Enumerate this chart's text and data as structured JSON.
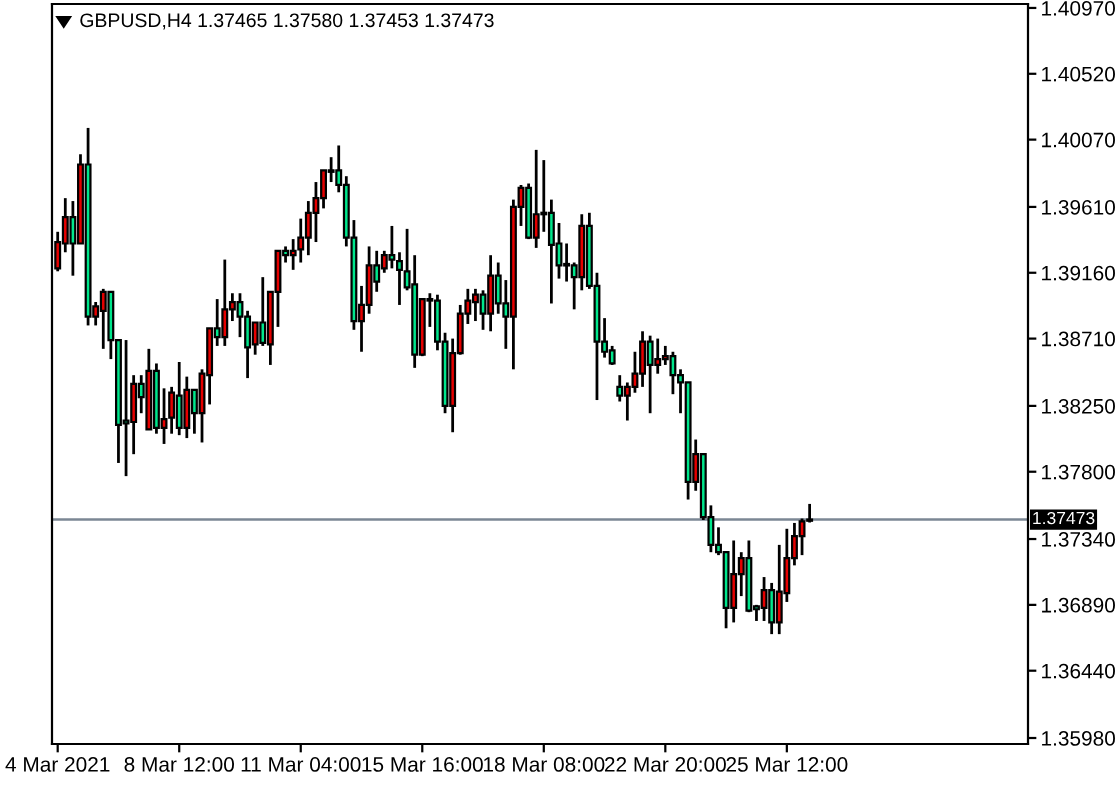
{
  "chart_data": {
    "type": "candlestick",
    "title": "GBPUSD,H4 1.37465 1.37580 1.37453 1.37473",
    "categories": [
      "4 Mar 2021",
      null,
      null,
      null,
      null,
      null,
      null,
      null,
      null,
      null,
      null,
      null,
      null,
      null,
      null,
      null,
      "8 Mar 12:00",
      null,
      null,
      null,
      null,
      null,
      null,
      null,
      null,
      null,
      null,
      null,
      null,
      null,
      null,
      null,
      "11 Mar 04:00",
      null,
      null,
      null,
      null,
      null,
      null,
      null,
      null,
      null,
      null,
      null,
      null,
      null,
      null,
      null,
      "15 Mar 16:00",
      null,
      null,
      null,
      null,
      null,
      null,
      null,
      null,
      null,
      null,
      null,
      null,
      null,
      null,
      null,
      "18 Mar 08:00",
      null,
      null,
      null,
      null,
      null,
      null,
      null,
      null,
      null,
      null,
      null,
      null,
      null,
      null,
      null,
      "22 Mar 20:00",
      null,
      null,
      null,
      null,
      null,
      null,
      null,
      null,
      null,
      null,
      null,
      null,
      null,
      null,
      null,
      "25 Mar 12:00",
      null,
      null,
      null,
      null,
      null,
      null,
      null,
      null,
      null,
      null,
      null,
      null,
      null,
      null,
      null,
      null,
      null,
      null,
      null,
      null,
      null,
      null,
      null,
      null,
      null,
      null,
      null,
      null,
      null,
      null,
      null
    ],
    "ohlc": [
      [
        1.3919,
        1.3944,
        1.3917,
        1.3937
      ],
      [
        1.3936,
        1.3967,
        1.393,
        1.3954
      ],
      [
        1.3954,
        1.3965,
        1.3914,
        1.3936
      ],
      [
        1.3936,
        1.3997,
        1.3936,
        1.399
      ],
      [
        1.399,
        1.4015,
        1.388,
        1.3886
      ],
      [
        1.3886,
        1.3896,
        1.388,
        1.3893
      ],
      [
        1.389,
        1.3905,
        1.3864,
        1.3903
      ],
      [
        1.3903,
        1.3903,
        1.3857,
        1.387
      ],
      [
        1.387,
        1.387,
        1.3786,
        1.3812
      ],
      [
        1.3815,
        1.387,
        1.3777,
        1.3813
      ],
      [
        1.3814,
        1.3846,
        1.3792,
        1.384
      ],
      [
        1.384,
        1.3846,
        1.382,
        1.3831
      ],
      [
        1.3809,
        1.3864,
        1.3809,
        1.3849
      ],
      [
        1.3849,
        1.3854,
        1.3806,
        1.381
      ],
      [
        1.381,
        1.3837,
        1.3799,
        1.3816
      ],
      [
        1.3817,
        1.3838,
        1.3806,
        1.3834
      ],
      [
        1.3832,
        1.3855,
        1.3805,
        1.381
      ],
      [
        1.381,
        1.3845,
        1.3803,
        1.3836
      ],
      [
        1.3836,
        1.3836,
        1.3806,
        1.382
      ],
      [
        1.382,
        1.385,
        1.38,
        1.3847
      ],
      [
        1.3846,
        1.3878,
        1.3826,
        1.3878
      ],
      [
        1.3878,
        1.3898,
        1.3866,
        1.3872
      ],
      [
        1.3872,
        1.3925,
        1.3866,
        1.3891
      ],
      [
        1.3891,
        1.3902,
        1.3883,
        1.3896
      ],
      [
        1.3896,
        1.3902,
        1.3872,
        1.3886
      ],
      [
        1.3886,
        1.389,
        1.3844,
        1.3865
      ],
      [
        1.3867,
        1.3882,
        1.386,
        1.3882
      ],
      [
        1.3882,
        1.3913,
        1.3866,
        1.3868
      ],
      [
        1.3867,
        1.3903,
        1.3853,
        1.3903
      ],
      [
        1.3903,
        1.3931,
        1.3879,
        1.3931
      ],
      [
        1.3931,
        1.3934,
        1.3923,
        1.3928
      ],
      [
        1.3928,
        1.3939,
        1.3918,
        1.3931
      ],
      [
        1.3932,
        1.3953,
        1.3923,
        1.394
      ],
      [
        1.394,
        1.3965,
        1.3928,
        1.3957
      ],
      [
        1.3957,
        1.3978,
        1.3937,
        1.3967
      ],
      [
        1.3967,
        1.3986,
        1.396,
        1.3986
      ],
      [
        1.3986,
        1.3995,
        1.3978,
        1.3985
      ],
      [
        1.3986,
        1.4003,
        1.3971,
        1.3976
      ],
      [
        1.3976,
        1.3982,
        1.3934,
        1.394
      ],
      [
        1.394,
        1.3952,
        1.3877,
        1.3883
      ],
      [
        1.3883,
        1.3907,
        1.3862,
        1.3894
      ],
      [
        1.3894,
        1.3934,
        1.3888,
        1.3921
      ],
      [
        1.3921,
        1.3931,
        1.3903,
        1.391
      ],
      [
        1.3919,
        1.3931,
        1.3916,
        1.3928
      ],
      [
        1.3928,
        1.3948,
        1.3919,
        1.3925
      ],
      [
        1.3924,
        1.393,
        1.3894,
        1.3918
      ],
      [
        1.3917,
        1.3946,
        1.3904,
        1.3906
      ],
      [
        1.3908,
        1.3928,
        1.3851,
        1.386
      ],
      [
        1.386,
        1.3898,
        1.3859,
        1.3898
      ],
      [
        1.3897,
        1.3902,
        1.3879,
        1.3898
      ],
      [
        1.3897,
        1.3901,
        1.3863,
        1.3869
      ],
      [
        1.3869,
        1.3875,
        1.382,
        1.3825
      ],
      [
        1.3825,
        1.3871,
        1.3807,
        1.3861
      ],
      [
        1.3861,
        1.3894,
        1.386,
        1.3888
      ],
      [
        1.3888,
        1.3905,
        1.3881,
        1.3897
      ],
      [
        1.3896,
        1.3905,
        1.3883,
        1.3901
      ],
      [
        1.3901,
        1.3904,
        1.3877,
        1.3888
      ],
      [
        1.3888,
        1.3928,
        1.3876,
        1.3914
      ],
      [
        1.3914,
        1.3923,
        1.3888,
        1.3895
      ],
      [
        1.3895,
        1.3911,
        1.3864,
        1.3886
      ],
      [
        1.3886,
        1.3966,
        1.385,
        1.3961
      ],
      [
        1.3961,
        1.3976,
        1.3948,
        1.3974
      ],
      [
        1.3974,
        1.3977,
        1.3939,
        1.394
      ],
      [
        1.394,
        1.4,
        1.3933,
        1.3956
      ],
      [
        1.3957,
        1.3993,
        1.3944,
        1.3956
      ],
      [
        1.3957,
        1.3966,
        1.3895,
        1.3935
      ],
      [
        1.3936,
        1.395,
        1.3912,
        1.3921
      ],
      [
        1.3922,
        1.3936,
        1.391,
        1.3921
      ],
      [
        1.3921,
        1.3923,
        1.3891,
        1.3913
      ],
      [
        1.3913,
        1.3956,
        1.3904,
        1.3948
      ],
      [
        1.3948,
        1.3957,
        1.3905,
        1.3907
      ],
      [
        1.3907,
        1.3916,
        1.3829,
        1.3869
      ],
      [
        1.3869,
        1.3885,
        1.3858,
        1.3862
      ],
      [
        1.3863,
        1.3866,
        1.3853,
        1.3854
      ],
      [
        1.3838,
        1.3846,
        1.3828,
        1.3832
      ],
      [
        1.3832,
        1.3841,
        1.3815,
        1.3838
      ],
      [
        1.3838,
        1.3862,
        1.3834,
        1.3847
      ],
      [
        1.3847,
        1.3876,
        1.3838,
        1.3869
      ],
      [
        1.3869,
        1.3873,
        1.382,
        1.3853
      ],
      [
        1.3853,
        1.3871,
        1.3847,
        1.3857
      ],
      [
        1.3857,
        1.3866,
        1.3853,
        1.3859
      ],
      [
        1.3859,
        1.3862,
        1.3833,
        1.3846
      ],
      [
        1.3846,
        1.385,
        1.382,
        1.3841
      ],
      [
        1.3841,
        1.3841,
        1.3761,
        1.3773
      ],
      [
        1.3773,
        1.3802,
        1.3767,
        1.3792
      ],
      [
        1.3792,
        1.3792,
        1.3747,
        1.3749
      ],
      [
        1.3749,
        1.3757,
        1.3725,
        1.373
      ],
      [
        1.373,
        1.3742,
        1.3723,
        1.3725
      ],
      [
        1.3725,
        1.3725,
        1.3673,
        1.3687
      ],
      [
        1.3687,
        1.3733,
        1.3677,
        1.371
      ],
      [
        1.371,
        1.3725,
        1.3695,
        1.3721
      ],
      [
        1.3721,
        1.3733,
        1.3684,
        1.3685
      ],
      [
        1.3688,
        1.3689,
        1.3678,
        1.3686
      ],
      [
        1.3687,
        1.3708,
        1.3678,
        1.3699
      ],
      [
        1.3699,
        1.3704,
        1.3669,
        1.3677
      ],
      [
        1.3677,
        1.373,
        1.3669,
        1.3698
      ],
      [
        1.3697,
        1.3741,
        1.3691,
        1.3721
      ],
      [
        1.3721,
        1.3745,
        1.3716,
        1.3736
      ],
      [
        1.3736,
        1.3748,
        1.3723,
        1.3746
      ],
      [
        1.37465,
        1.3758,
        1.37453,
        1.37473
      ],
      null,
      null,
      null,
      null,
      null,
      null,
      null,
      null,
      null,
      null,
      null,
      null,
      null,
      null,
      null,
      null,
      null,
      null,
      null,
      null,
      null,
      null,
      null,
      null,
      null,
      null,
      null,
      null
    ],
    "colors": [
      "#e60000",
      "#e60000",
      "#00e68c",
      "#e60000",
      "#00e68c",
      "#e60000",
      "#e60000",
      "#00e68c",
      "#00e68c",
      "#00e68c",
      "#e60000",
      "#00e68c",
      "#e60000",
      "#00e68c",
      "#e60000",
      "#e60000",
      "#00e68c",
      "#e60000",
      "#00e68c",
      "#e60000",
      "#e60000",
      "#00e68c",
      "#e60000",
      "#e60000",
      "#00e68c",
      "#00e68c",
      "#e60000",
      "#00e68c",
      "#e60000",
      "#e60000",
      "#00e68c",
      "#e60000",
      "#e60000",
      "#e60000",
      "#e60000",
      "#e60000",
      "#00e68c",
      "#00e68c",
      "#00e68c",
      "#00e68c",
      "#e60000",
      "#e60000",
      "#00e68c",
      "#e60000",
      "#00e68c",
      "#00e68c",
      "#00e68c",
      "#00e68c",
      "#e60000",
      "#e60000",
      "#00e68c",
      "#00e68c",
      "#e60000",
      "#e60000",
      "#e60000",
      "#e60000",
      "#00e68c",
      "#e60000",
      "#00e68c",
      "#00e68c",
      "#e60000",
      "#e60000",
      "#00e68c",
      "#e60000",
      "#00e68c",
      "#00e68c",
      "#00e68c",
      "#00e68c",
      "#00e68c",
      "#e60000",
      "#00e68c",
      "#00e68c",
      "#00e68c",
      "#00e68c",
      "#00e68c",
      "#e60000",
      "#e60000",
      "#e60000",
      "#00e68c",
      "#e60000",
      "#e60000",
      "#00e68c",
      "#00e68c",
      "#00e68c",
      "#e60000",
      "#00e68c",
      "#00e68c",
      "#00e68c",
      "#00e68c",
      "#e60000",
      "#e60000",
      "#00e68c",
      "#00e68c",
      "#e60000",
      "#00e68c",
      "#e60000",
      "#e60000",
      "#e60000",
      "#e60000",
      "#e60000",
      null,
      null,
      null,
      null,
      null,
      null,
      null,
      null,
      null,
      null,
      null,
      null,
      null,
      null,
      null,
      null,
      null,
      null,
      null,
      null,
      null,
      null,
      null,
      null,
      null,
      null,
      null,
      null
    ],
    "ylim": [
      1.35939,
      1.40997
    ],
    "yticks": [
      {
        "value": 1.4097,
        "label": "1.40970"
      },
      {
        "value": 1.4052,
        "label": "1.40520"
      },
      {
        "value": 1.4007,
        "label": "1.40070"
      },
      {
        "value": 1.3961,
        "label": "1.39610"
      },
      {
        "value": 1.3916,
        "label": "1.39160"
      },
      {
        "value": 1.3871,
        "label": "1.38710"
      },
      {
        "value": 1.3825,
        "label": "1.38250"
      },
      {
        "value": 1.378,
        "label": "1.37800"
      },
      {
        "value": 1.3734,
        "label": "1.37340"
      },
      {
        "value": 1.3689,
        "label": "1.36890"
      },
      {
        "value": 1.3644,
        "label": "1.36440"
      },
      {
        "value": 1.3598,
        "label": "1.35980"
      }
    ],
    "ref_lines": [
      {
        "axis": "y",
        "value": 1.37473,
        "label": "1.37473",
        "color": "#7b8794"
      }
    ],
    "grid": false,
    "legend": false
  }
}
